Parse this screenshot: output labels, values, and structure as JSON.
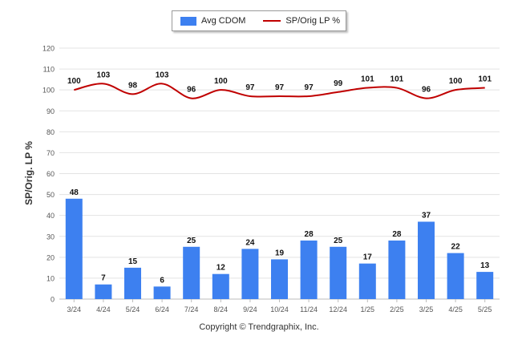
{
  "chart_data": {
    "type": "bar+line",
    "categories": [
      "3/24",
      "4/24",
      "5/24",
      "6/24",
      "7/24",
      "8/24",
      "9/24",
      "10/24",
      "11/24",
      "12/24",
      "1/25",
      "2/25",
      "3/25",
      "4/25",
      "5/25"
    ],
    "series": [
      {
        "name": "Avg CDOM",
        "type": "bar",
        "color": "#3d80f0",
        "values": [
          48,
          7,
          15,
          6,
          25,
          12,
          24,
          19,
          28,
          25,
          17,
          28,
          37,
          22,
          13
        ]
      },
      {
        "name": "SP/Orig LP %",
        "type": "line",
        "color": "#c00000",
        "values": [
          100,
          103,
          98,
          103,
          96,
          100,
          97,
          97,
          97,
          99,
          101,
          101,
          96,
          100,
          101
        ]
      }
    ],
    "ylabel": "SP/Orig. LP %",
    "ylim": [
      0,
      120
    ],
    "yticks": [
      0,
      10,
      20,
      30,
      40,
      50,
      60,
      70,
      80,
      90,
      100,
      110,
      120
    ],
    "grid": true,
    "legend": "top-center"
  },
  "footer": {
    "credit": "Copyright © Trendgraphix, Inc."
  }
}
